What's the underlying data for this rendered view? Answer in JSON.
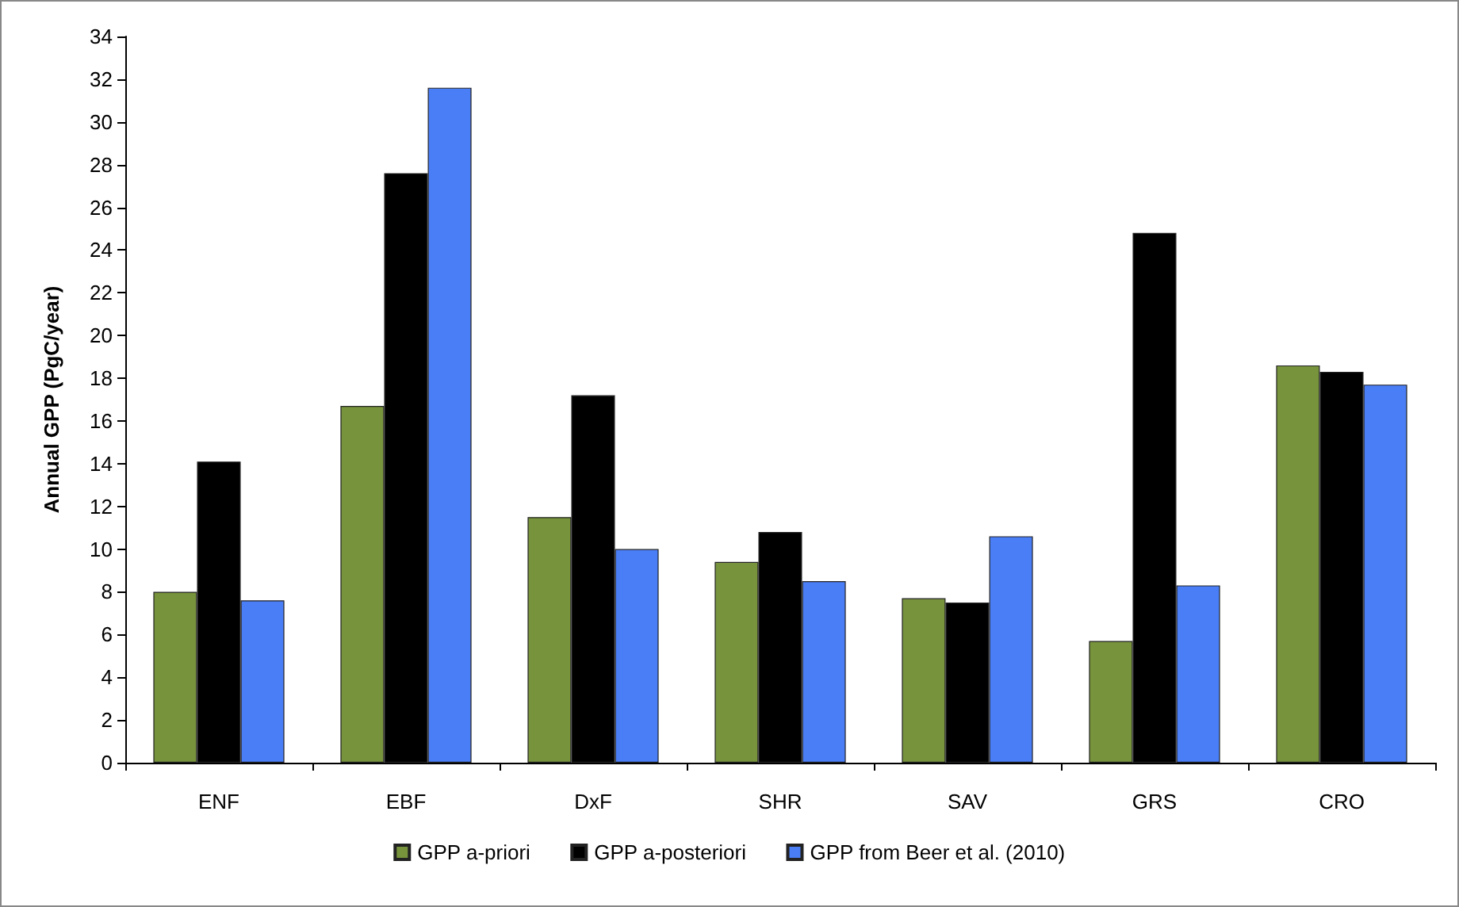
{
  "chart_data": {
    "type": "bar",
    "ylabel": "Annual GPP (PgC/year)",
    "categories": [
      "ENF",
      "EBF",
      "DxF",
      "SHR",
      "SAV",
      "GRS",
      "CRO"
    ],
    "series": [
      {
        "name": "GPP a-priori",
        "color": "#77933c",
        "values": [
          8.0,
          16.7,
          11.5,
          9.4,
          7.7,
          5.7,
          18.6
        ]
      },
      {
        "name": "GPP a-posteriori",
        "color": "#000000",
        "values": [
          14.1,
          27.6,
          17.2,
          10.8,
          7.5,
          24.8,
          18.3
        ]
      },
      {
        "name": "GPP from Beer et al. (2010)",
        "color": "#4a7ef7",
        "values": [
          7.6,
          31.6,
          10.0,
          8.5,
          10.6,
          8.3,
          17.7
        ]
      }
    ],
    "ylim": [
      0,
      34
    ],
    "yticks": [
      0,
      2,
      4,
      6,
      8,
      10,
      12,
      14,
      16,
      18,
      20,
      22,
      24,
      26,
      28,
      30,
      32,
      34
    ],
    "grid": false,
    "legend": "bottom"
  }
}
